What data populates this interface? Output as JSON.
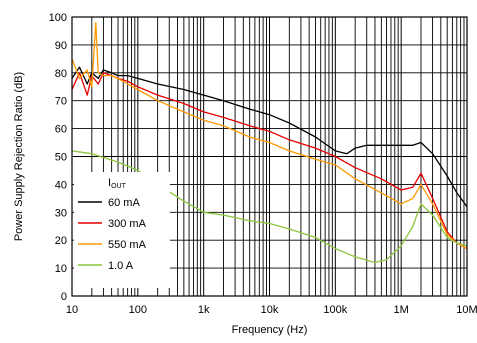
{
  "chart_data": {
    "type": "line",
    "title": "",
    "xlabel": "Frequency (Hz)",
    "ylabel": "Power Supply Rejection Ratio (dB)",
    "x_scale": "log",
    "xlim": [
      10,
      10000000
    ],
    "ylim": [
      0,
      100
    ],
    "grid": true,
    "legend_position": "bottom-left",
    "legend_title": "I",
    "legend_title_sub": "OUT",
    "x_ticks": [
      {
        "value": 10,
        "label": "10"
      },
      {
        "value": 100,
        "label": "100"
      },
      {
        "value": 1000,
        "label": "1k"
      },
      {
        "value": 10000,
        "label": "10k"
      },
      {
        "value": 100000,
        "label": "100k"
      },
      {
        "value": 1000000,
        "label": "1M"
      },
      {
        "value": 10000000,
        "label": "10M"
      }
    ],
    "y_ticks": [
      0,
      10,
      20,
      30,
      40,
      50,
      60,
      70,
      80,
      90,
      100
    ],
    "series": [
      {
        "name": "60 mA",
        "color": "#000000",
        "points": [
          [
            10,
            78
          ],
          [
            13,
            82
          ],
          [
            17,
            76
          ],
          [
            20,
            80
          ],
          [
            25,
            78
          ],
          [
            30,
            81
          ],
          [
            40,
            80
          ],
          [
            50,
            79
          ],
          [
            70,
            79
          ],
          [
            100,
            78
          ],
          [
            200,
            76
          ],
          [
            500,
            74
          ],
          [
            1000,
            72
          ],
          [
            2000,
            70
          ],
          [
            5000,
            67
          ],
          [
            10000,
            65
          ],
          [
            20000,
            62
          ],
          [
            50000,
            57
          ],
          [
            100000,
            52
          ],
          [
            150000,
            51
          ],
          [
            200000,
            53
          ],
          [
            300000,
            54
          ],
          [
            500000,
            54
          ],
          [
            1000000,
            54
          ],
          [
            1500000,
            54
          ],
          [
            2000000,
            55
          ],
          [
            3000000,
            51
          ],
          [
            5000000,
            43
          ],
          [
            7000000,
            37
          ],
          [
            10000000,
            32
          ]
        ]
      },
      {
        "name": "300 mA",
        "color": "#e60000",
        "points": [
          [
            10,
            74
          ],
          [
            13,
            80
          ],
          [
            17,
            72
          ],
          [
            20,
            79
          ],
          [
            25,
            76
          ],
          [
            30,
            80
          ],
          [
            40,
            79
          ],
          [
            50,
            78
          ],
          [
            70,
            77
          ],
          [
            100,
            75
          ],
          [
            200,
            72
          ],
          [
            500,
            69
          ],
          [
            1000,
            66
          ],
          [
            2000,
            64
          ],
          [
            5000,
            61
          ],
          [
            10000,
            59
          ],
          [
            20000,
            56
          ],
          [
            50000,
            53
          ],
          [
            100000,
            50
          ],
          [
            200000,
            46
          ],
          [
            500000,
            42
          ],
          [
            1000000,
            38
          ],
          [
            1500000,
            39
          ],
          [
            2000000,
            44
          ],
          [
            3000000,
            35
          ],
          [
            5000000,
            23
          ],
          [
            7000000,
            19
          ],
          [
            10000000,
            17
          ]
        ]
      },
      {
        "name": "550 mA",
        "color": "#ff9900",
        "points": [
          [
            10,
            85
          ],
          [
            13,
            78
          ],
          [
            17,
            81
          ],
          [
            20,
            75
          ],
          [
            23,
            98
          ],
          [
            25,
            80
          ],
          [
            30,
            79
          ],
          [
            40,
            79
          ],
          [
            50,
            78
          ],
          [
            70,
            76
          ],
          [
            100,
            74
          ],
          [
            200,
            70
          ],
          [
            500,
            66
          ],
          [
            1000,
            63
          ],
          [
            2000,
            61
          ],
          [
            5000,
            57
          ],
          [
            10000,
            55
          ],
          [
            20000,
            52
          ],
          [
            50000,
            49
          ],
          [
            100000,
            47
          ],
          [
            200000,
            42
          ],
          [
            500000,
            37
          ],
          [
            1000000,
            33
          ],
          [
            1500000,
            35
          ],
          [
            2000000,
            40
          ],
          [
            3000000,
            33
          ],
          [
            5000000,
            22
          ],
          [
            7000000,
            19
          ],
          [
            10000000,
            17
          ]
        ]
      },
      {
        "name": "1.0 A",
        "color": "#8cc63f",
        "points": [
          [
            10,
            52
          ],
          [
            20,
            51
          ],
          [
            50,
            48
          ],
          [
            100,
            45
          ],
          [
            200,
            40
          ],
          [
            500,
            34
          ],
          [
            1000,
            30
          ],
          [
            2000,
            29
          ],
          [
            5000,
            27
          ],
          [
            10000,
            26
          ],
          [
            20000,
            24
          ],
          [
            50000,
            21
          ],
          [
            100000,
            17
          ],
          [
            200000,
            14
          ],
          [
            400000,
            12
          ],
          [
            600000,
            13
          ],
          [
            1000000,
            18
          ],
          [
            1500000,
            25
          ],
          [
            2000000,
            33
          ],
          [
            3000000,
            29
          ],
          [
            5000000,
            21
          ],
          [
            7000000,
            19
          ],
          [
            10000000,
            18
          ]
        ]
      }
    ]
  }
}
